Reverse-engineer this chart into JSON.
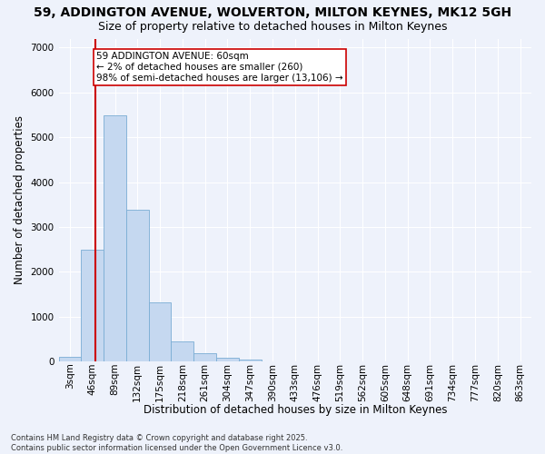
{
  "title": "59, ADDINGTON AVENUE, WOLVERTON, MILTON KEYNES, MK12 5GH",
  "subtitle": "Size of property relative to detached houses in Milton Keynes",
  "xlabel": "Distribution of detached houses by size in Milton Keynes",
  "ylabel": "Number of detached properties",
  "bin_labels": [
    "3sqm",
    "46sqm",
    "89sqm",
    "132sqm",
    "175sqm",
    "218sqm",
    "261sqm",
    "304sqm",
    "347sqm",
    "390sqm",
    "433sqm",
    "476sqm",
    "519sqm",
    "562sqm",
    "605sqm",
    "648sqm",
    "691sqm",
    "734sqm",
    "777sqm",
    "820sqm",
    "863sqm"
  ],
  "bar_heights": [
    100,
    2500,
    5480,
    3380,
    1310,
    450,
    195,
    88,
    38,
    5,
    2,
    1,
    0,
    0,
    0,
    0,
    0,
    0,
    0,
    0,
    0
  ],
  "bar_color": "#c5d8f0",
  "bar_edge_color": "#7aadd4",
  "vline_x_data": 1.14,
  "vline_color": "#cc0000",
  "annotation_text": "59 ADDINGTON AVENUE: 60sqm\n← 2% of detached houses are smaller (260)\n98% of semi-detached houses are larger (13,106) →",
  "annotation_box_color": "#ffffff",
  "annotation_border_color": "#cc0000",
  "background_color": "#eef2fb",
  "grid_color": "#ffffff",
  "footer": "Contains HM Land Registry data © Crown copyright and database right 2025.\nContains public sector information licensed under the Open Government Licence v3.0.",
  "ylim": [
    0,
    7200
  ],
  "title_fontsize": 10,
  "subtitle_fontsize": 9,
  "axis_label_fontsize": 8.5,
  "tick_fontsize": 7.5,
  "annotation_fontsize": 7.5
}
